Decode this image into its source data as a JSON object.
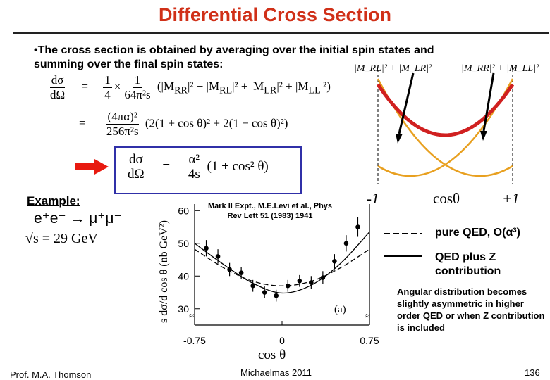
{
  "slide": {
    "title": "Differential Cross Section",
    "bullet": "•The cross section is obtained by averaging over the initial spin states and summing over the final spin states:",
    "example_label": "Example:",
    "reaction": "e⁺e⁻ → μ⁺μ⁻",
    "sqrt_s": "29 GeV",
    "reference": "Mark II Expt., M.E.Levi et al., Phys Rev Lett 51 (1983) 1941",
    "note": "Angular distribution becomes slightly asymmetric in higher order QED or when Z contribution is included",
    "footer": {
      "author": "Prof. M.A. Thomson",
      "term": "Michaelmas 2011",
      "page": "136"
    }
  },
  "equations": {
    "lhs": "dσ/dΩ",
    "line1_coeff": "1/4 × 1/(64π²s)",
    "line1_body": "(|M_RR|² + |M_RL|² + |M_LR|² + |M_LL|²)",
    "line2_coeff": "(4πα)²/(256π²s)",
    "line2_body": "(2(1+cosθ)² + 2(1−cosθ)²)",
    "boxed": "dσ/dΩ = α²/(4s) (1 + cos²θ)"
  },
  "theory_plot": {
    "label_left": "|M_RL|² + |M_LR|²",
    "label_right": "|M_RR|² + |M_LL|²",
    "x_min_label": "-1",
    "x_mid_label": "cosθ",
    "x_max_label": "+1",
    "colors": {
      "sum": "#d02020",
      "components": "#e8a020",
      "arrows": "#000000"
    }
  },
  "legend": {
    "dashed": "pure QED,  O(α³)",
    "solid": "QED plus  Z contribution"
  },
  "chart_data": {
    "type": "scatter",
    "title": "",
    "xlabel": "cos θ",
    "ylabel": "s dσ/d cos θ (nb GeV²)",
    "xlim": [
      -0.75,
      0.75
    ],
    "ylim": [
      30,
      60
    ],
    "x_tick_labels": [
      "-0.75",
      "0",
      "0.75"
    ],
    "x_ticks": [
      -0.75,
      0,
      0.75
    ],
    "y_tick_labels": [
      "30",
      "40",
      "50",
      "60"
    ],
    "y_ticks": [
      30,
      40,
      50,
      60
    ],
    "panel_label": "(a)",
    "series": [
      {
        "name": "Mark II data",
        "x": [
          -0.65,
          -0.55,
          -0.45,
          -0.35,
          -0.25,
          -0.15,
          -0.05,
          0.05,
          0.15,
          0.25,
          0.35,
          0.45,
          0.55,
          0.65
        ],
        "y": [
          48.5,
          46.0,
          42.0,
          41.0,
          37.0,
          35.0,
          34.0,
          37.0,
          38.5,
          38.0,
          39.5,
          44.5,
          50.0,
          55.0
        ],
        "err": [
          2.5,
          2.2,
          2.0,
          1.8,
          1.8,
          1.8,
          1.8,
          1.8,
          1.8,
          2.0,
          2.0,
          2.2,
          2.5,
          3.0
        ]
      },
      {
        "name": "pure QED, O(α³)",
        "style": "dashed",
        "x": [
          -0.75,
          -0.5,
          -0.25,
          0,
          0.25,
          0.5,
          0.75
        ],
        "y": [
          48.2,
          42.5,
          38.4,
          37.0,
          38.4,
          42.5,
          48.2
        ]
      },
      {
        "name": "QED plus Z contribution",
        "style": "solid",
        "x": [
          -0.75,
          -0.5,
          -0.25,
          0,
          0.25,
          0.5,
          0.75
        ],
        "y": [
          50.0,
          43.5,
          37.8,
          34.8,
          37.2,
          43.8,
          53.5
        ]
      }
    ]
  }
}
